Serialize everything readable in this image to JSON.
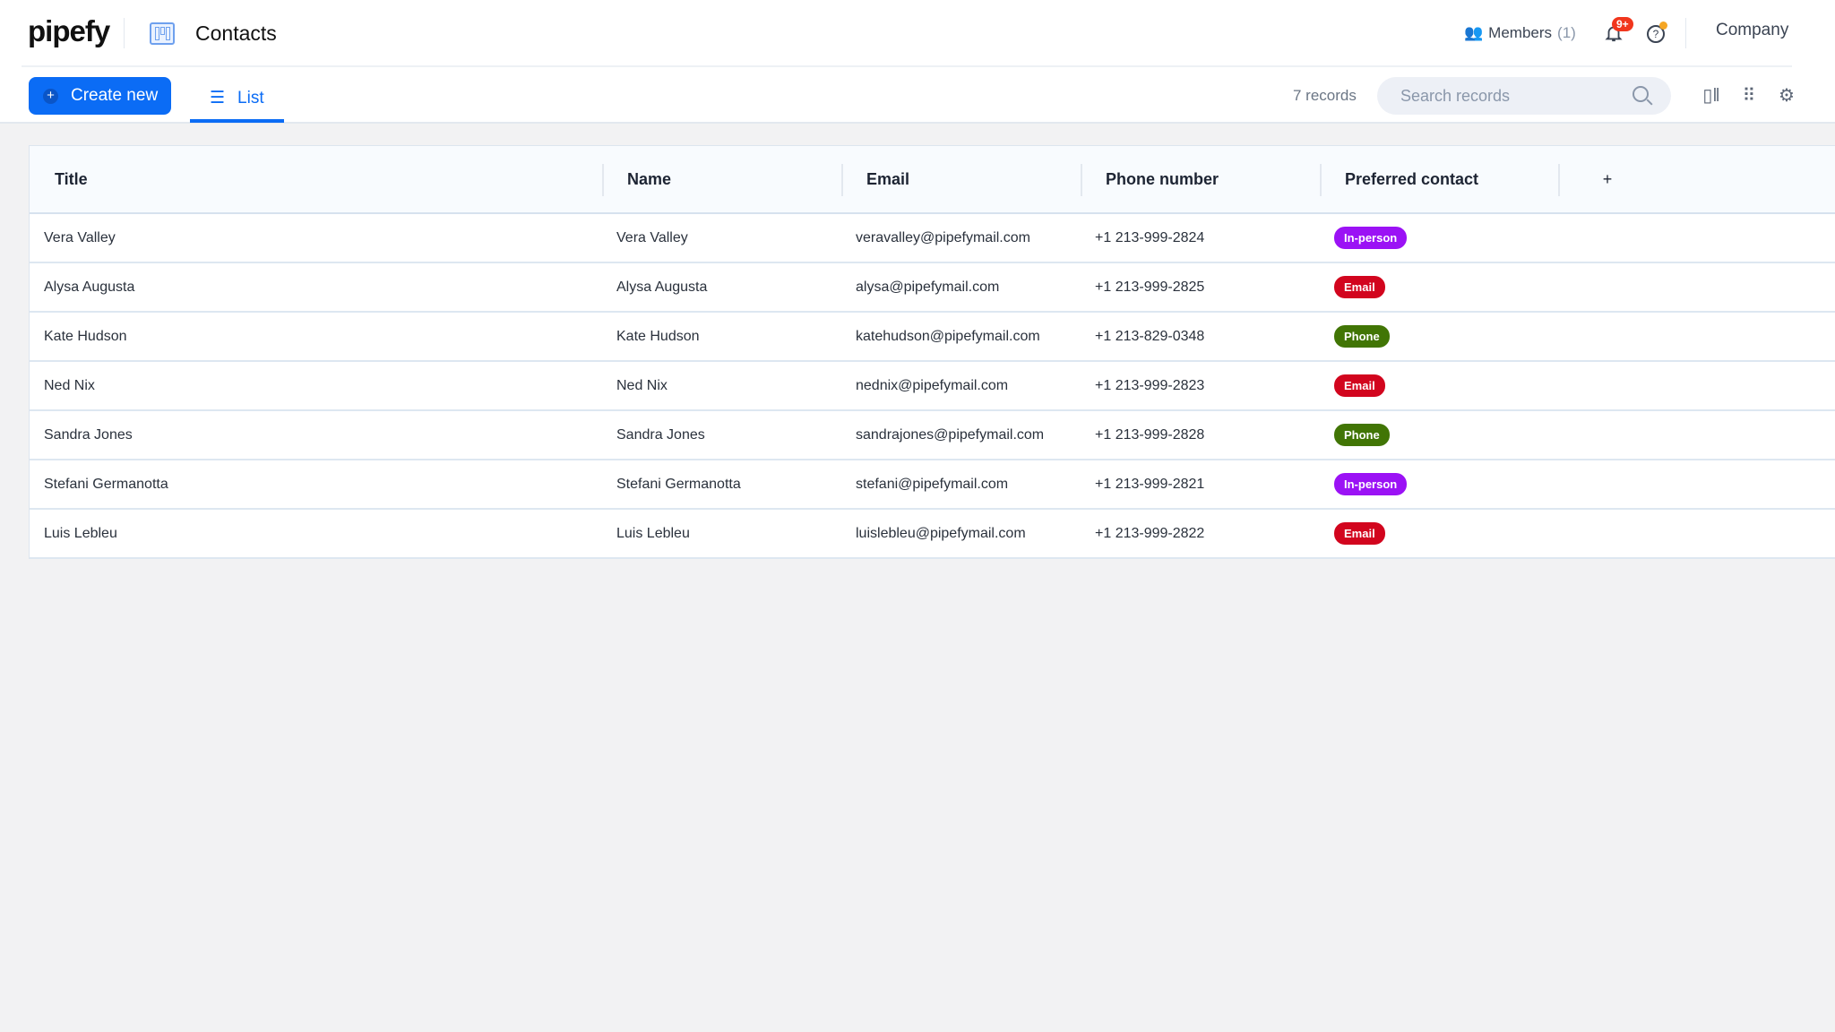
{
  "header": {
    "logo": "pipefy",
    "app_title": "Contacts",
    "members_label": "Members",
    "members_count": "(1)",
    "notifications_badge": "9+",
    "company": "Company"
  },
  "toolbar": {
    "create_label": "Create new",
    "tab_list": "List",
    "records": "7 records",
    "search_placeholder": "Search records"
  },
  "colors": {
    "accent": "#0b6cf5",
    "In-person": "#9b12f5",
    "Email": "#d2051e",
    "Phone": "#417505"
  },
  "table": {
    "columns": [
      "Title",
      "Name",
      "Email",
      "Phone number",
      "Preferred contact"
    ],
    "rows": [
      [
        "Vera Valley",
        "Vera Valley",
        "veravalley@pipefymail.com",
        "+1 213-999-2824",
        "In-person"
      ],
      [
        "Alysa Augusta",
        "Alysa Augusta",
        "alysa@pipefymail.com",
        "+1 213-999-2825",
        "Email"
      ],
      [
        "Kate Hudson",
        "Kate Hudson",
        "katehudson@pipefymail.com",
        "+1 213-829-0348",
        "Phone"
      ],
      [
        "Ned Nix",
        "Ned Nix",
        "nednix@pipefymail.com",
        "+1 213-999-2823",
        "Email"
      ],
      [
        "Sandra Jones",
        "Sandra Jones",
        "sandrajones@pipefymail.com",
        "+1 213-999-2828",
        "Phone"
      ],
      [
        "Stefani Germanotta",
        "Stefani Germanotta",
        "stefani@pipefymail.com",
        "+1 213-999-2821",
        "In-person"
      ],
      [
        "Luis Lebleu",
        "Luis Lebleu",
        "luislebleu@pipefymail.com",
        "+1 213-999-2822",
        "Email"
      ]
    ]
  }
}
